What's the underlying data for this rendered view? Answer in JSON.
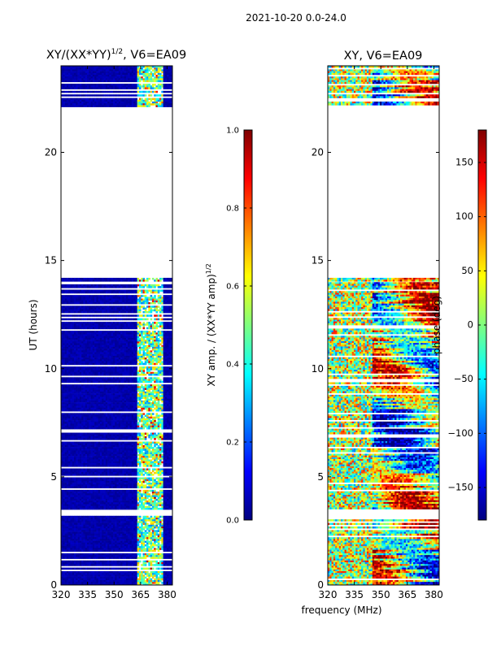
{
  "suptitle": "2021-10-20 0.0-24.0",
  "ylabel": "UT (hours)",
  "xlabel": "frequency (MHz)",
  "colors": {
    "background": "#ffffff",
    "axis": "#000000",
    "jet": [
      "#00007f",
      "#0000ff",
      "#007fff",
      "#00ffff",
      "#7fff7f",
      "#ffff00",
      "#ff7f00",
      "#ff0000",
      "#7f0000"
    ]
  },
  "chart_data": [
    {
      "type": "heatmap",
      "title": "XY/(XX*YY)",
      "title_sup": "1/2",
      "title_tail": ", V6=EA09",
      "xlabel": "frequency (MHz)",
      "ylabel": "UT (hours)",
      "xlim": [
        320,
        383
      ],
      "ylim": [
        0,
        24
      ],
      "xticks": [
        320,
        335,
        350,
        365,
        380
      ],
      "yticks": [
        0,
        5,
        10,
        15,
        20
      ],
      "occupied_ut_ranges": [
        [
          0,
          3.2
        ],
        [
          3.5,
          13.9
        ],
        [
          14.1,
          14.2
        ],
        [
          22.1,
          24
        ]
      ],
      "rfi_channel_band_mhz": [
        363,
        378
      ],
      "colorbar": {
        "label": "XY amp. / (XX*YY amp)",
        "label_sup": "1/2",
        "range": [
          0.0,
          1.0
        ],
        "ticks": [
          "0.0",
          "0.2",
          "0.4",
          "0.6",
          "0.8",
          "1.0"
        ]
      }
    },
    {
      "type": "heatmap",
      "title": "XY, V6=EA09",
      "xlabel": "frequency (MHz)",
      "ylabel": "",
      "xlim": [
        320,
        383
      ],
      "ylim": [
        0,
        24
      ],
      "xticks": [
        320,
        335,
        350,
        365,
        380
      ],
      "yticks": [
        0,
        5,
        10,
        15,
        20
      ],
      "occupied_ut_ranges": [
        [
          0,
          3.2
        ],
        [
          3.5,
          14.0
        ],
        [
          14.1,
          14.2
        ],
        [
          22.1,
          24
        ]
      ],
      "colorbar": {
        "label": "phase (deg)",
        "range": [
          -180,
          180
        ],
        "ticks": [
          "−150",
          "−100",
          "−50",
          "0",
          "50",
          "100",
          "150"
        ]
      }
    }
  ]
}
